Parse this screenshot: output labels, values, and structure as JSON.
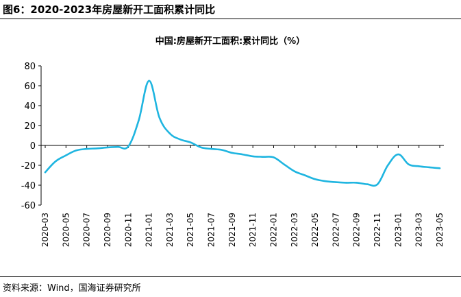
{
  "figure": {
    "title": "图6：2020-2023年房屋新开工面积累计同比",
    "source": "资料来源：Wind，国海证券研究所"
  },
  "chart_data": {
    "type": "line",
    "title": "中国:房屋新开工面积:累计同比（%）",
    "xlabel": "",
    "ylabel": "",
    "ylim": [
      -60,
      80
    ],
    "yticks": [
      -60,
      -40,
      -20,
      0,
      20,
      40,
      60,
      80
    ],
    "grid": false,
    "line_color": "#1fb5e0",
    "categories": [
      "2020-03",
      "2020-04",
      "2020-05",
      "2020-06",
      "2020-07",
      "2020-08",
      "2020-09",
      "2020-10",
      "2020-11",
      "2020-12",
      "2021-01",
      "2021-02",
      "2021-03",
      "2021-04",
      "2021-05",
      "2021-06",
      "2021-07",
      "2021-08",
      "2021-09",
      "2021-10",
      "2021-11",
      "2021-12",
      "2022-01",
      "2022-02",
      "2022-03",
      "2022-04",
      "2022-05",
      "2022-06",
      "2022-07",
      "2022-08",
      "2022-09",
      "2022-10",
      "2022-11",
      "2022-12",
      "2023-01",
      "2023-02",
      "2023-03",
      "2023-04",
      "2023-05"
    ],
    "tick_labels": [
      "2020-03",
      "2020-05",
      "2020-07",
      "2020-09",
      "2020-11",
      "2021-01",
      "2021-03",
      "2021-05",
      "2021-07",
      "2021-09",
      "2021-11",
      "2022-01",
      "2022-03",
      "2022-05",
      "2022-07",
      "2022-09",
      "2022-11",
      "2023-01",
      "2023-03",
      "2023-05"
    ],
    "series": [
      {
        "name": "中国:房屋新开工面积:累计同比",
        "values": [
          -27,
          -16,
          -10,
          -5,
          -3.5,
          -3,
          -2,
          -1.5,
          -1,
          25,
          65,
          28,
          12,
          6,
          3,
          -2,
          -3.5,
          -4.5,
          -7.5,
          -9,
          -11,
          -11.5,
          -12,
          -19,
          -26,
          -30,
          -34,
          -36,
          -37,
          -37.5,
          -37.5,
          -39,
          -39,
          -20,
          -9,
          -19,
          -21,
          -22,
          -23
        ]
      }
    ]
  }
}
